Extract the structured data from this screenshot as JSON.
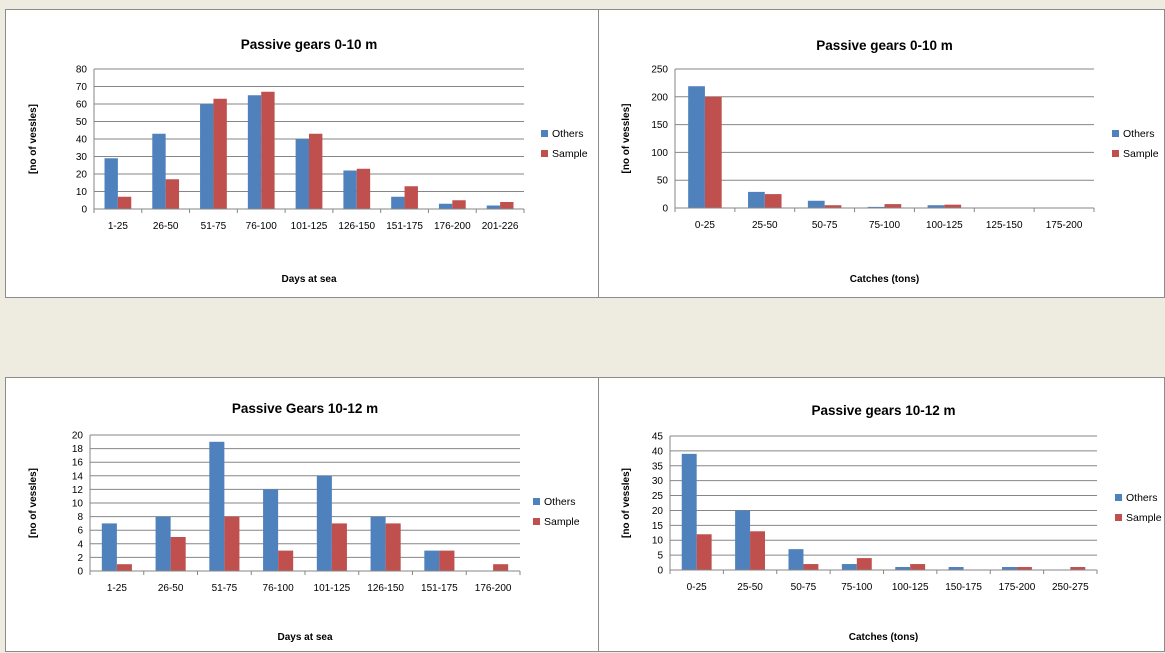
{
  "colors": {
    "others": "#4f81bd",
    "sample": "#c0504d",
    "grid": "#868686",
    "background": "#eeebe0"
  },
  "chart_data": [
    {
      "type": "bar",
      "title": "Passive gears 0-10 m",
      "xlabel": "Days at sea",
      "ylabel": "[no of vessles]",
      "categories": [
        "1-25",
        "26-50",
        "51-75",
        "76-100",
        "101-125",
        "126-150",
        "151-175",
        "176-200",
        "201-226"
      ],
      "series": [
        {
          "name": "Others",
          "values": [
            29,
            43,
            60,
            65,
            40,
            22,
            7,
            3,
            2
          ]
        },
        {
          "name": "Sample",
          "values": [
            7,
            17,
            63,
            67,
            43,
            23,
            13,
            5,
            4
          ]
        }
      ],
      "ylim": [
        0,
        80
      ],
      "yticks": [
        0,
        10,
        20,
        30,
        40,
        50,
        60,
        70,
        80
      ],
      "legend": "right",
      "grid": true
    },
    {
      "type": "bar",
      "title": "Passive gears 0-10 m",
      "xlabel": "Catches (tons)",
      "ylabel": "[no of vessles]",
      "categories": [
        "0-25",
        "25-50",
        "50-75",
        "75-100",
        "100-125",
        "125-150",
        "175-200"
      ],
      "series": [
        {
          "name": "Others",
          "values": [
            219,
            29,
            13,
            2,
            5,
            0,
            0
          ]
        },
        {
          "name": "Sample",
          "values": [
            200,
            25,
            5,
            7,
            6,
            0,
            0
          ]
        }
      ],
      "ylim": [
        0,
        250
      ],
      "yticks": [
        0,
        50,
        100,
        150,
        200,
        250
      ],
      "legend": "right",
      "grid": true
    },
    {
      "type": "bar",
      "title": "Passive Gears 10-12 m",
      "xlabel": "Days at sea",
      "ylabel": "[no of vessles]",
      "categories": [
        "1-25",
        "26-50",
        "51-75",
        "76-100",
        "101-125",
        "126-150",
        "151-175",
        "176-200"
      ],
      "series": [
        {
          "name": "Others",
          "values": [
            7,
            8,
            19,
            12,
            14,
            8,
            3,
            0
          ]
        },
        {
          "name": "Sample",
          "values": [
            1,
            5,
            8,
            3,
            7,
            7,
            3,
            1
          ]
        }
      ],
      "ylim": [
        0,
        20
      ],
      "yticks": [
        0,
        2,
        4,
        6,
        8,
        10,
        12,
        14,
        16,
        18,
        20
      ],
      "legend": "right",
      "grid": true
    },
    {
      "type": "bar",
      "title": "Passive gears 10-12 m",
      "xlabel": "Catches (tons)",
      "ylabel": "[no of vessles]",
      "categories": [
        "0-25",
        "25-50",
        "50-75",
        "75-100",
        "100-125",
        "150-175",
        "175-200",
        "250-275"
      ],
      "series": [
        {
          "name": "Others",
          "values": [
            39,
            20,
            7,
            2,
            1,
            1,
            1,
            0
          ]
        },
        {
          "name": "Sample",
          "values": [
            12,
            13,
            2,
            4,
            2,
            0,
            1,
            1
          ]
        }
      ],
      "ylim": [
        0,
        45
      ],
      "yticks": [
        0,
        5,
        10,
        15,
        20,
        25,
        30,
        35,
        40,
        45
      ],
      "legend": "right",
      "grid": true
    }
  ]
}
